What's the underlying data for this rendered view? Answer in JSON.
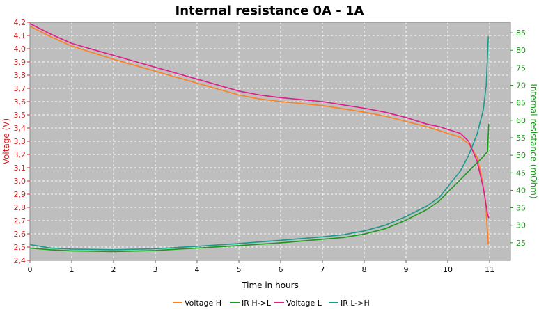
{
  "chart_data": {
    "type": "line",
    "title": "Internal resistance  0A - 1A",
    "xlabel": "Time in hours",
    "ylabel_left": "Voltage (V)",
    "ylabel_right": "Internal resistance (mOhm)",
    "xlim": [
      0,
      11.5
    ],
    "ylim_left": [
      2.4,
      4.2
    ],
    "ylim_right": [
      20,
      88
    ],
    "x_ticks": [
      0,
      1,
      2,
      3,
      4,
      5,
      6,
      7,
      8,
      9,
      10,
      11
    ],
    "y_left_ticks": [
      "2,4",
      "2,5",
      "2,6",
      "2,7",
      "2,8",
      "2,9",
      "3,0",
      "3,1",
      "3,2",
      "3,3",
      "3,4",
      "3,5",
      "3,6",
      "3,7",
      "3,8",
      "3,9",
      "4,0",
      "4,1",
      "4,2"
    ],
    "y_left_values": [
      2.4,
      2.5,
      2.6,
      2.7,
      2.8,
      2.9,
      3.0,
      3.1,
      3.2,
      3.3,
      3.4,
      3.5,
      3.6,
      3.7,
      3.8,
      3.9,
      4.0,
      4.1,
      4.2
    ],
    "y_right_ticks": [
      25,
      30,
      35,
      40,
      45,
      50,
      55,
      60,
      65,
      70,
      75,
      80,
      85
    ],
    "grid": true,
    "legend_position": "bottom",
    "colors": {
      "voltage_h": "#ff7f1e",
      "ir_h_l": "#1a9a1a",
      "voltage_l": "#e6188c",
      "ir_l_h": "#1a9a8c",
      "plot_bg": "#bebebe",
      "left_axis": "#d62020",
      "right_axis": "#1a9a1a"
    },
    "series": [
      {
        "name": "Voltage H",
        "axis": "left",
        "x": [
          0,
          0.5,
          1,
          2,
          3,
          4,
          5,
          5.5,
          6,
          7,
          8,
          8.5,
          9,
          9.5,
          10,
          10.3,
          10.5,
          10.7,
          10.8,
          10.9,
          10.97
        ],
        "y": [
          4.17,
          4.09,
          4.02,
          3.92,
          3.83,
          3.74,
          3.65,
          3.62,
          3.6,
          3.57,
          3.52,
          3.49,
          3.45,
          3.41,
          3.36,
          3.33,
          3.28,
          3.18,
          3.05,
          2.85,
          2.52
        ]
      },
      {
        "name": "IR H->L",
        "axis": "right",
        "x": [
          0,
          0.5,
          1,
          2,
          3,
          4,
          5,
          6,
          7,
          7.5,
          8,
          8.5,
          9,
          9.5,
          9.8,
          10,
          10.3,
          10.5,
          10.8,
          10.95,
          10.98
        ],
        "y": [
          23.5,
          23,
          22.7,
          22.5,
          22.8,
          23.5,
          24.2,
          25,
          26,
          26.5,
          27.5,
          29,
          31.5,
          34.5,
          37,
          39.5,
          43,
          45.5,
          49,
          51,
          59
        ]
      },
      {
        "name": "Voltage L",
        "axis": "left",
        "x": [
          0,
          0.5,
          1,
          2,
          3,
          4,
          5,
          5.5,
          6,
          7,
          8,
          8.5,
          9,
          9.5,
          9.8,
          10,
          10.3,
          10.5,
          10.7,
          10.85,
          10.95,
          10.98
        ],
        "y": [
          4.19,
          4.11,
          4.04,
          3.95,
          3.86,
          3.77,
          3.68,
          3.65,
          3.63,
          3.6,
          3.55,
          3.52,
          3.48,
          3.43,
          3.41,
          3.39,
          3.36,
          3.3,
          3.15,
          2.95,
          2.75,
          2.72
        ]
      },
      {
        "name": "IR L->H",
        "axis": "right",
        "x": [
          0,
          0.5,
          1,
          2,
          3,
          4,
          5,
          6,
          7,
          7.5,
          8,
          8.5,
          9,
          9.5,
          9.8,
          10,
          10.3,
          10.5,
          10.7,
          10.85,
          10.92,
          10.97
        ],
        "y": [
          24.5,
          23.5,
          23.2,
          23,
          23.3,
          24,
          24.8,
          25.7,
          26.7,
          27.3,
          28.4,
          30,
          32.5,
          35.5,
          38,
          41,
          45.5,
          50,
          56,
          63,
          70,
          84
        ]
      }
    ]
  }
}
